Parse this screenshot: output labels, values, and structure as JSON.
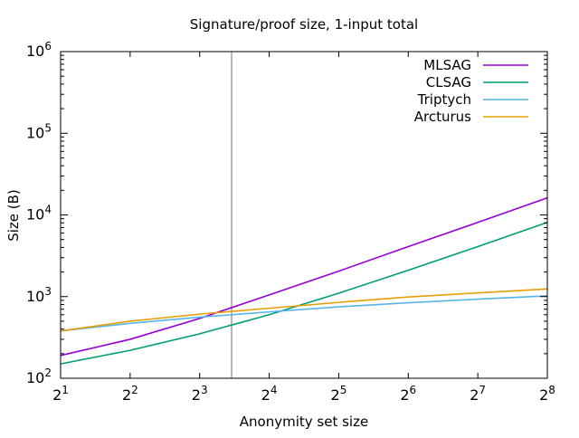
{
  "chart_data": {
    "type": "line",
    "title": "Signature/proof size, 1-input total",
    "xlabel": "Anonymity set size",
    "ylabel": "Size (B)",
    "x_scale": "log2",
    "y_scale": "log10",
    "xlim": [
      2,
      256
    ],
    "ylim": [
      100,
      1000000
    ],
    "x_ticks": [
      {
        "value": 2,
        "base": "2",
        "exp": "1"
      },
      {
        "value": 4,
        "base": "2",
        "exp": "2"
      },
      {
        "value": 8,
        "base": "2",
        "exp": "3"
      },
      {
        "value": 16,
        "base": "2",
        "exp": "4"
      },
      {
        "value": 32,
        "base": "2",
        "exp": "5"
      },
      {
        "value": 64,
        "base": "2",
        "exp": "6"
      },
      {
        "value": 128,
        "base": "2",
        "exp": "7"
      },
      {
        "value": 256,
        "base": "2",
        "exp": "8"
      }
    ],
    "y_ticks": [
      {
        "value": 100,
        "base": "10",
        "exp": "2"
      },
      {
        "value": 1000,
        "base": "10",
        "exp": "3"
      },
      {
        "value": 10000,
        "base": "10",
        "exp": "4"
      },
      {
        "value": 100000,
        "base": "10",
        "exp": "5"
      },
      {
        "value": 1000000,
        "base": "10",
        "exp": "6"
      }
    ],
    "vertical_marker_x": 11,
    "vertical_marker_color": "#a0a0a0",
    "grid": false,
    "legend_position": "top-right",
    "series": [
      {
        "name": "MLSAG",
        "color": "#9400d3",
        "x": [
          2,
          4,
          8,
          16,
          32,
          64,
          128,
          256
        ],
        "values": [
          190,
          300,
          540,
          1050,
          2050,
          4100,
          8100,
          16200
        ]
      },
      {
        "name": "CLSAG",
        "color": "#009e73",
        "x": [
          2,
          4,
          8,
          16,
          32,
          64,
          128,
          256
        ],
        "values": [
          150,
          220,
          350,
          600,
          1100,
          2100,
          4100,
          8100
        ]
      },
      {
        "name": "Triptych",
        "color": "#56b4e9",
        "x": [
          2,
          4,
          8,
          16,
          32,
          64,
          128,
          256
        ],
        "values": [
          380,
          470,
          560,
          650,
          750,
          840,
          930,
          1020
        ]
      },
      {
        "name": "Arcturus",
        "color": "#e69f00",
        "x": [
          2,
          4,
          8,
          16,
          32,
          64,
          128,
          256
        ],
        "values": [
          380,
          500,
          610,
          720,
          850,
          990,
          1110,
          1240
        ]
      }
    ]
  }
}
